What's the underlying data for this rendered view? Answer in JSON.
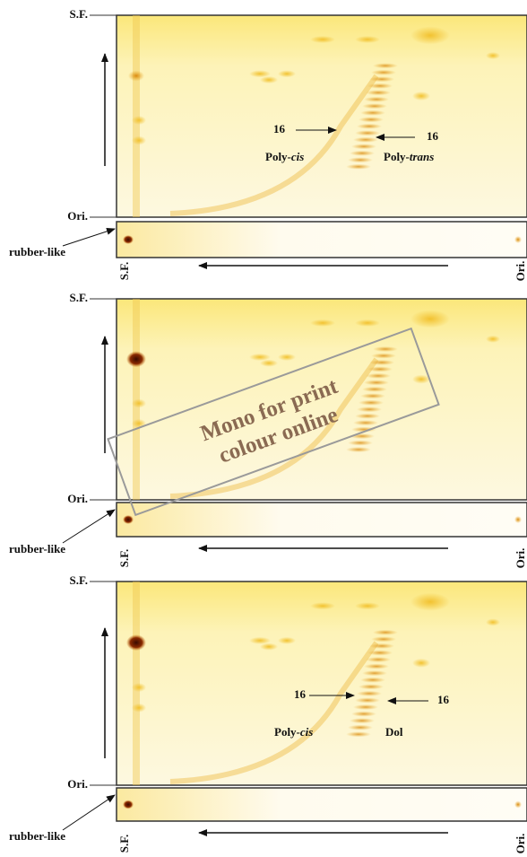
{
  "panels": [
    {
      "top_label": "S.F.",
      "bottom_label": "Ori.",
      "side_label": "rubber-like",
      "strip_start_label": "S.F.",
      "strip_end_label": "Ori.",
      "annotations": [
        {
          "text": "16"
        },
        {
          "text": "16"
        },
        {
          "prefix": "Poly-",
          "italic": "cis"
        },
        {
          "prefix": "Poly-",
          "italic": "trans"
        }
      ]
    },
    {
      "top_label": "S.F.",
      "bottom_label": "Ori.",
      "side_label": "rubber-like",
      "strip_start_label": "S.F.",
      "strip_end_label": "Ori.",
      "annotations": []
    },
    {
      "top_label": "S.F.",
      "bottom_label": "Ori.",
      "side_label": "rubber-like",
      "strip_start_label": "S.F.",
      "strip_end_label": "Ori.",
      "annotations": [
        {
          "text": "16"
        },
        {
          "text": "16"
        },
        {
          "prefix": "Poly-",
          "italic": "cis"
        },
        {
          "text": "Dol"
        }
      ]
    }
  ],
  "watermark": [
    "Mono for print",
    "colour online"
  ]
}
